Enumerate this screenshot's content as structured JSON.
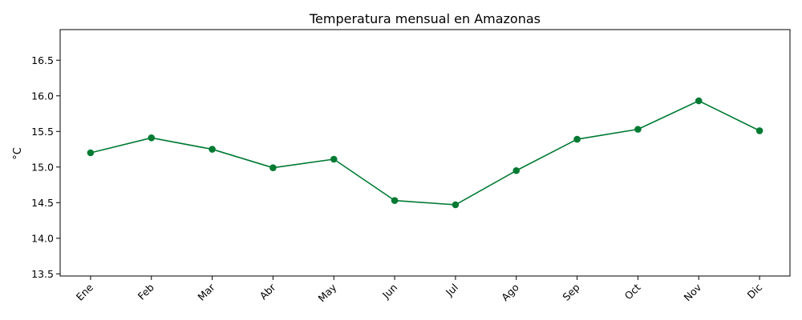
{
  "chart_data": {
    "type": "line",
    "title": "Temperatura mensual en Amazonas",
    "xlabel": "",
    "ylabel": "°C",
    "categories": [
      "Ene",
      "Feb",
      "Mar",
      "Abr",
      "May",
      "Jun",
      "Jul",
      "Ago",
      "Sep",
      "Oct",
      "Nov",
      "Dic"
    ],
    "series": [
      {
        "values": [
          15.2,
          15.41,
          15.25,
          14.99,
          15.11,
          14.53,
          14.47,
          14.95,
          15.39,
          15.53,
          15.93,
          15.51
        ],
        "color": "#007a33"
      }
    ],
    "ylim": [
      13.47,
      16.93
    ],
    "yticks": [
      "13.5",
      "14.0",
      "14.5",
      "15.0",
      "15.5",
      "16.0",
      "16.5"
    ],
    "grid": false,
    "marker": "circle"
  }
}
